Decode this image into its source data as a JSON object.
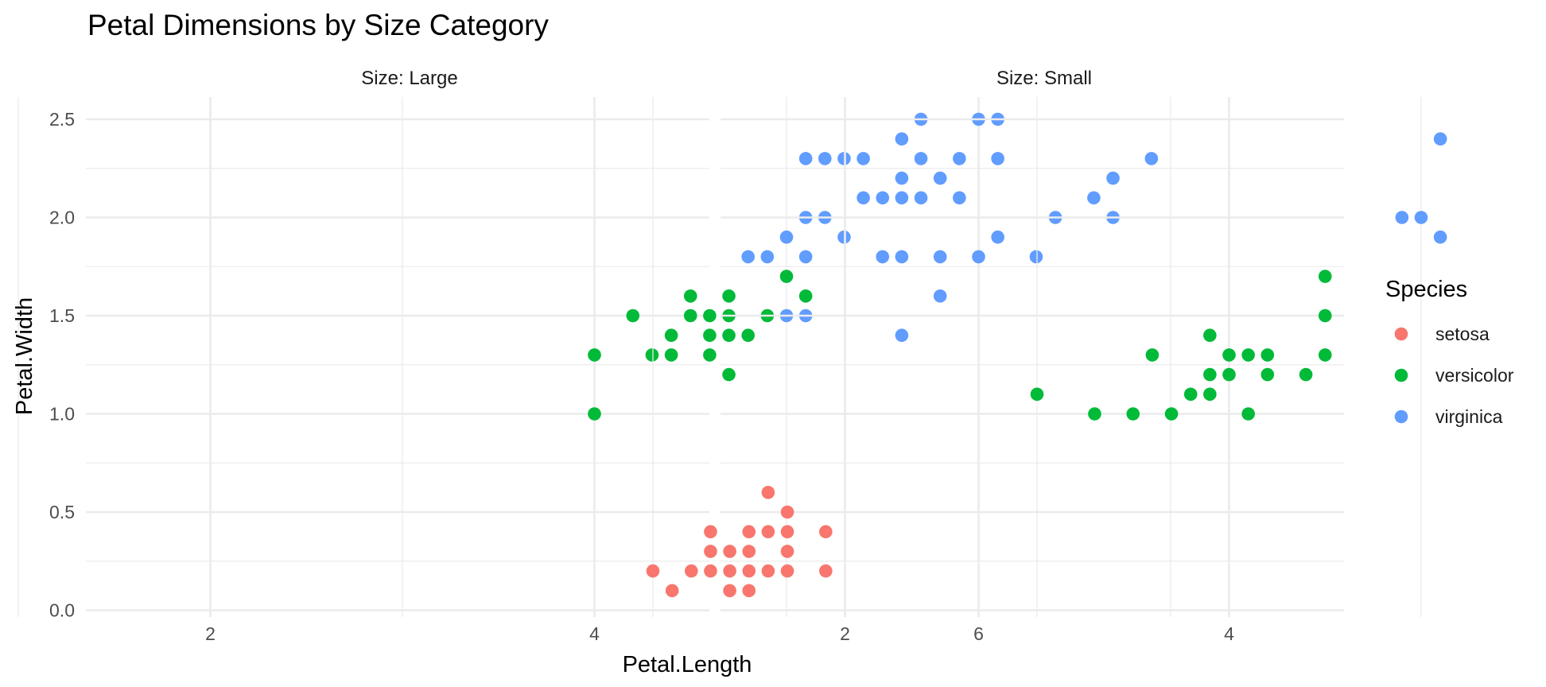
{
  "chart_data": {
    "type": "scatter",
    "title": "Petal Dimensions by Size Category",
    "xlabel": "Petal.Length",
    "ylabel": "Petal.Width",
    "xlim": [
      0.7,
      7.2
    ],
    "ylim": [
      -0.05,
      2.62
    ],
    "x_ticks": [
      2,
      4,
      6
    ],
    "y_ticks": [
      0.0,
      0.5,
      1.0,
      1.5,
      2.0,
      2.5
    ],
    "y_tick_labels": [
      "0.0",
      "0.5",
      "1.0",
      "1.5",
      "2.0",
      "2.5"
    ],
    "grid": true,
    "legend": {
      "title": "Species",
      "position": "right",
      "entries": [
        {
          "label": "setosa",
          "color": "#F8766D"
        },
        {
          "label": "versicolor",
          "color": "#00BA38"
        },
        {
          "label": "virginica",
          "color": "#619CFF"
        }
      ]
    },
    "facets": [
      {
        "label": "Size: Large",
        "series": [
          {
            "name": "versicolor",
            "color": "#00BA38",
            "points": [
              [
                4.0,
                1.3
              ],
              [
                4.0,
                1.0
              ],
              [
                4.2,
                1.5
              ],
              [
                4.3,
                1.3
              ],
              [
                4.4,
                1.3
              ],
              [
                4.4,
                1.4
              ],
              [
                4.5,
                1.6
              ],
              [
                4.5,
                1.5
              ],
              [
                4.6,
                1.5
              ],
              [
                4.6,
                1.4
              ],
              [
                4.6,
                1.3
              ],
              [
                4.7,
                1.6
              ],
              [
                4.7,
                1.5
              ],
              [
                4.7,
                1.4
              ],
              [
                4.7,
                1.2
              ],
              [
                4.8,
                1.4
              ],
              [
                4.9,
                1.5
              ],
              [
                5.0,
                1.7
              ],
              [
                5.1,
                1.6
              ]
            ]
          },
          {
            "name": "virginica",
            "color": "#619CFF",
            "points": [
              [
                4.8,
                1.8
              ],
              [
                4.9,
                1.8
              ],
              [
                5.0,
                1.9
              ],
              [
                5.0,
                1.5
              ],
              [
                5.1,
                2.3
              ],
              [
                5.1,
                2.0
              ],
              [
                5.1,
                1.8
              ],
              [
                5.1,
                1.5
              ],
              [
                5.2,
                2.3
              ],
              [
                5.2,
                2.0
              ],
              [
                5.3,
                2.3
              ],
              [
                5.3,
                1.9
              ],
              [
                5.4,
                2.3
              ],
              [
                5.4,
                2.1
              ],
              [
                5.5,
                2.1
              ],
              [
                5.5,
                1.8
              ],
              [
                5.6,
                2.4
              ],
              [
                5.6,
                2.2
              ],
              [
                5.6,
                2.1
              ],
              [
                5.6,
                1.8
              ],
              [
                5.6,
                1.4
              ],
              [
                5.7,
                2.5
              ],
              [
                5.7,
                2.3
              ],
              [
                5.7,
                2.1
              ],
              [
                5.8,
                2.2
              ],
              [
                5.8,
                1.8
              ],
              [
                5.8,
                1.6
              ],
              [
                5.9,
                2.3
              ],
              [
                5.9,
                2.1
              ],
              [
                6.0,
                2.5
              ],
              [
                6.0,
                1.8
              ],
              [
                6.1,
                2.5
              ],
              [
                6.1,
                2.3
              ],
              [
                6.1,
                1.9
              ],
              [
                6.3,
                1.8
              ],
              [
                6.4,
                2.0
              ],
              [
                6.6,
                2.1
              ],
              [
                6.7,
                2.2
              ],
              [
                6.7,
                2.0
              ],
              [
                6.9,
                2.3
              ]
            ]
          }
        ]
      },
      {
        "label": "Size: Small",
        "series": [
          {
            "name": "setosa",
            "color": "#F8766D",
            "points": [
              [
                1.0,
                0.2
              ],
              [
                1.1,
                0.1
              ],
              [
                1.2,
                0.2
              ],
              [
                1.3,
                0.2
              ],
              [
                1.3,
                0.3
              ],
              [
                1.3,
                0.4
              ],
              [
                1.4,
                0.2
              ],
              [
                1.4,
                0.3
              ],
              [
                1.4,
                0.1
              ],
              [
                1.5,
                0.2
              ],
              [
                1.5,
                0.4
              ],
              [
                1.5,
                0.1
              ],
              [
                1.5,
                0.3
              ],
              [
                1.6,
                0.2
              ],
              [
                1.6,
                0.4
              ],
              [
                1.6,
                0.6
              ],
              [
                1.7,
                0.2
              ],
              [
                1.7,
                0.4
              ],
              [
                1.7,
                0.3
              ],
              [
                1.7,
                0.5
              ],
              [
                1.9,
                0.2
              ],
              [
                1.9,
                0.4
              ]
            ]
          },
          {
            "name": "versicolor",
            "color": "#00BA38",
            "points": [
              [
                3.0,
                1.1
              ],
              [
                3.3,
                1.0
              ],
              [
                3.5,
                1.0
              ],
              [
                3.6,
                1.3
              ],
              [
                3.7,
                1.0
              ],
              [
                3.8,
                1.1
              ],
              [
                3.9,
                1.4
              ],
              [
                3.9,
                1.2
              ],
              [
                3.9,
                1.1
              ],
              [
                4.0,
                1.3
              ],
              [
                4.0,
                1.2
              ],
              [
                4.1,
                1.3
              ],
              [
                4.1,
                1.0
              ],
              [
                4.2,
                1.3
              ],
              [
                4.2,
                1.2
              ],
              [
                4.4,
                1.2
              ],
              [
                4.5,
                1.5
              ],
              [
                4.5,
                1.7
              ],
              [
                4.5,
                1.3
              ]
            ]
          },
          {
            "name": "virginica",
            "color": "#619CFF",
            "points": [
              [
                4.9,
                2.0
              ],
              [
                5.0,
                2.0
              ],
              [
                5.1,
                2.4
              ],
              [
                5.1,
                1.9
              ]
            ]
          }
        ]
      }
    ]
  }
}
